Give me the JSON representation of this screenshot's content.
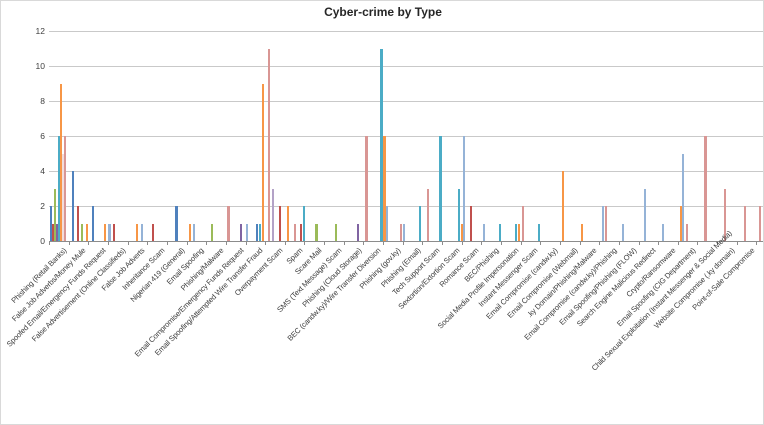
{
  "title": "Cyber-crime by Type",
  "y_axis": {
    "min": 0,
    "max": 12,
    "tick_step": 2,
    "tick_labels": [
      "0",
      "2",
      "4",
      "6",
      "8",
      "10",
      "12"
    ]
  },
  "palette": {
    "blue": "#4F81BD",
    "red": "#C0504D",
    "green": "#9BBB59",
    "purple": "#8064A2",
    "teal": "#4BACC6",
    "orange": "#F79646",
    "lightblue": "#95B3D7",
    "pink": "#D99694",
    "palepink": "#F2DCDB",
    "lavender": "#B3A2C7"
  },
  "chart_data": {
    "type": "bar",
    "title": "Cyber-crime by Type",
    "xlabel": "",
    "ylabel": "",
    "ylim": [
      0,
      12
    ],
    "yticks": [
      0,
      2,
      4,
      6,
      8,
      10,
      12
    ],
    "grid": true,
    "legend": "none",
    "categories": [
      "Phishing (Retail Banks)",
      "False Job Adverbs/Money Mule",
      "Spoofed Email/Emergency Funds Request",
      "False Advertisement (Online Classifieds)",
      "False Job Adverts",
      "Inheritance Scam",
      "Nigerian 419 (General)",
      "Email Spoofing",
      "Phishing/Malware",
      "Email Compromise/Emergency Funds Request",
      "Email Spoofing/Attempted Wire Transfer Fraud",
      "Overpayment Scam",
      "Spam",
      "Scare Mail",
      "SMS (Text Message) Scam",
      "Phishing (Cloud Storage)",
      "BEC (candw.ky)/Wire Transfer Diversion",
      "Phishing (gov.ky)",
      "Phishing (Email)",
      "Tech Support Scam",
      "Sextortion/Extortion Scam",
      "Romance Scam",
      "BEC/Phishing",
      "Social Media Profile Impersonation",
      "Instant Messenger Scam",
      "Email Compromise (candw.ky)",
      "Email Compromise (Webmail)",
      ".ky Domain/Phishing/Malware",
      "Email Compromise (candw.ky)/Phishing",
      "Email Spoofing/Phishing (FLOW)",
      "Search Engine Malicious Redirect",
      "Crypto/Ransomware",
      "Email Spoofing (CIG Department)",
      "Child Sexual Exploitation (Instant Messenger & Social Media)",
      "Website Compromise (.ky domain)",
      "Point-of-Sale Compromise"
    ],
    "groups": [
      {
        "category": "Phishing (Retail Banks)",
        "bars": [
          {
            "color": "blue",
            "value": 2,
            "slot": 1
          },
          {
            "color": "red",
            "value": 1,
            "slot": 3
          },
          {
            "color": "green",
            "value": 3,
            "slot": 5
          },
          {
            "color": "purple",
            "value": 1,
            "slot": 7
          },
          {
            "color": "teal",
            "value": 6,
            "slot": 9
          },
          {
            "color": "orange",
            "value": 9,
            "slot": 11
          },
          {
            "color": "palepink",
            "value": 5,
            "slot": 13
          },
          {
            "color": "pink",
            "value": 6,
            "slot": 15
          }
        ]
      },
      {
        "category": "False Job Adverbs/Money Mule",
        "bars": [
          {
            "color": "blue",
            "value": 4,
            "slot": 3.5
          },
          {
            "color": "red",
            "value": 2,
            "slot": 8.5
          },
          {
            "color": "green",
            "value": 1,
            "slot": 12.5
          },
          {
            "color": "orange",
            "value": 1,
            "slot": 17.5
          }
        ]
      },
      {
        "category": "Spoofed Email/Emergency Funds Request",
        "bars": [
          {
            "color": "blue",
            "value": 2,
            "slot": 3.5
          },
          {
            "color": "orange",
            "value": 1,
            "slot": 16
          }
        ]
      },
      {
        "category": "False Advertisement (Online Classifieds)",
        "bars": [
          {
            "color": "lightblue",
            "value": 1,
            "slot": 0.5
          },
          {
            "color": "red",
            "value": 1,
            "slot": 5
          }
        ]
      },
      {
        "category": "False Job Adverts",
        "bars": [
          {
            "color": "orange",
            "value": 1,
            "slot": 8
          },
          {
            "color": "lightblue",
            "value": 1,
            "slot": 13.5
          }
        ]
      },
      {
        "category": "Inheritance Scam",
        "bars": [
          {
            "color": "red",
            "value": 1,
            "slot": 4.5
          }
        ]
      },
      {
        "category": "Nigerian 419 (General)",
        "bars": [
          {
            "color": "blue",
            "value": 2,
            "slot": 8.5
          }
        ]
      },
      {
        "category": "Email Spoofing",
        "bars": [
          {
            "color": "orange",
            "value": 1,
            "slot": 2.5
          },
          {
            "color": "lightblue",
            "value": 1,
            "slot": 6.5
          }
        ]
      },
      {
        "category": "Phishing/Malware",
        "bars": [
          {
            "color": "green",
            "value": 1,
            "slot": 4.5
          }
        ]
      },
      {
        "category": "Email Compromise/Emergency Funds Request",
        "bars": [
          {
            "color": "pink",
            "value": 2,
            "slot": 1.5
          },
          {
            "color": "purple",
            "value": 1,
            "slot": 14
          }
        ]
      },
      {
        "category": "Email Spoofing/Attempted Wire Transfer Fraud",
        "bars": [
          {
            "color": "lightblue",
            "value": 1,
            "slot": 0.5
          },
          {
            "color": "blue",
            "value": 1,
            "slot": 10.5
          },
          {
            "color": "teal",
            "value": 1,
            "slot": 13.5
          },
          {
            "color": "orange",
            "value": 9,
            "slot": 16.5
          }
        ]
      },
      {
        "category": "Overpayment Scam",
        "bars": [
          {
            "color": "pink",
            "value": 11,
            "slot": 2.5
          },
          {
            "color": "lavender",
            "value": 3,
            "slot": 6.5
          },
          {
            "color": "red",
            "value": 2,
            "slot": 14
          }
        ]
      },
      {
        "category": "Spam",
        "bars": [
          {
            "color": "orange",
            "value": 2,
            "slot": 2
          },
          {
            "color": "pink",
            "value": 1,
            "slot": 9.5
          },
          {
            "color": "red",
            "value": 1,
            "slot": 15
          },
          {
            "color": "teal",
            "value": 2,
            "slot": 17.8
          }
        ]
      },
      {
        "category": "Scare Mail",
        "bars": [
          {
            "color": "green",
            "value": 1,
            "slot": 11
          }
        ]
      },
      {
        "category": "SMS (Text Message) Scam",
        "bars": [
          {
            "color": "green",
            "value": 1,
            "slot": 11
          }
        ]
      },
      {
        "category": "Phishing (Cloud Storage)",
        "bars": [
          {
            "color": "purple",
            "value": 1,
            "slot": 13
          }
        ]
      },
      {
        "category": "BEC (candw.ky)/Wire Transfer Diversion",
        "bars": [
          {
            "color": "pink",
            "value": 6,
            "slot": 2
          },
          {
            "color": "teal",
            "value": 11,
            "slot": 17
          }
        ]
      },
      {
        "category": "Phishing (gov.ky)",
        "bars": [
          {
            "color": "orange",
            "value": 6,
            "slot": 0.3
          },
          {
            "color": "lightblue",
            "value": 2,
            "slot": 3.2
          },
          {
            "color": "pink",
            "value": 1,
            "slot": 17
          }
        ]
      },
      {
        "category": "Phishing (Email)",
        "bars": [
          {
            "color": "lightblue",
            "value": 1,
            "slot": 0.5
          },
          {
            "color": "teal",
            "value": 2,
            "slot": 16.5
          }
        ]
      },
      {
        "category": "Tech Support Scam",
        "bars": [
          {
            "color": "pink",
            "value": 3,
            "slot": 4.5
          },
          {
            "color": "teal",
            "value": 6,
            "slot": 17
          }
        ]
      },
      {
        "category": "Sextortion/Extortion Scam",
        "bars": [
          {
            "color": "teal",
            "value": 3,
            "slot": 16
          },
          {
            "color": "orange",
            "value": 1,
            "slot": 18.5
          }
        ]
      },
      {
        "category": "Romance Scam",
        "bars": [
          {
            "color": "lightblue",
            "value": 6,
            "slot": 1
          },
          {
            "color": "red",
            "value": 2,
            "slot": 8.5
          }
        ]
      },
      {
        "category": "BEC/Phishing",
        "bars": [
          {
            "color": "lightblue",
            "value": 1,
            "slot": 2
          },
          {
            "color": "teal",
            "value": 1,
            "slot": 17.5
          }
        ]
      },
      {
        "category": "Social Media Profile Impersonation",
        "bars": [
          {
            "color": "teal",
            "value": 1,
            "slot": 14
          },
          {
            "color": "orange",
            "value": 1,
            "slot": 16.6
          }
        ]
      },
      {
        "category": "Instant Messenger Scam",
        "bars": [
          {
            "color": "pink",
            "value": 2,
            "slot": 1
          },
          {
            "color": "teal",
            "value": 1,
            "slot": 17.5
          }
        ]
      },
      {
        "category": "Email Compromise (candw.ky)",
        "bars": []
      },
      {
        "category": "Email Compromise (Webmail)",
        "bars": [
          {
            "color": "orange",
            "value": 4,
            "slot": 2
          }
        ]
      },
      {
        "category": ".ky Domain/Phishing/Malware",
        "bars": [
          {
            "color": "orange",
            "value": 1,
            "slot": 1.5
          }
        ]
      },
      {
        "category": "Email Compromise (candw.ky)/Phishing",
        "bars": [
          {
            "color": "lightblue",
            "value": 2,
            "slot": 2.5
          },
          {
            "color": "pink",
            "value": 2,
            "slot": 5.5
          }
        ]
      },
      {
        "category": "Email Spoofing/Phishing (FLOW)",
        "bars": [
          {
            "color": "lightblue",
            "value": 1,
            "slot": 3
          }
        ]
      },
      {
        "category": "Search Engine Malicious Redirect",
        "bars": [
          {
            "color": "lightblue",
            "value": 3,
            "slot": 5
          }
        ]
      },
      {
        "category": "Crypto/Ransomware",
        "bars": [
          {
            "color": "lightblue",
            "value": 1,
            "slot": 4
          }
        ]
      },
      {
        "category": "Email Spoofing (CIG Department)",
        "bars": [
          {
            "color": "orange",
            "value": 2,
            "slot": 2
          },
          {
            "color": "lightblue",
            "value": 5,
            "slot": 4.4
          },
          {
            "color": "pink",
            "value": 1,
            "slot": 8
          }
        ]
      },
      {
        "category": "Child Sexual Exploitation (Instant Messenger & Social Media)",
        "bars": [
          {
            "color": "pink",
            "value": 6,
            "slot": 7
          }
        ]
      },
      {
        "category": "Website Compromise (.ky domain)",
        "bars": [
          {
            "color": "pink",
            "value": 3,
            "slot": 6.5
          }
        ]
      },
      {
        "category": "Point-of-Sale Compromise",
        "bars": [
          {
            "color": "pink",
            "value": 2,
            "slot": 7.5
          },
          {
            "color": "pink",
            "value": 2,
            "slot": 22.3
          }
        ]
      }
    ]
  }
}
